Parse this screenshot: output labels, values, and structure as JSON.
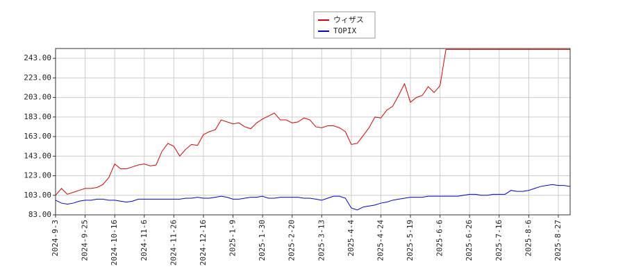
{
  "chart_data": {
    "type": "line",
    "categories": [
      "2024-9-3",
      null,
      null,
      null,
      null,
      "2024-9-25",
      null,
      null,
      null,
      null,
      "2024-10-16",
      null,
      null,
      null,
      null,
      "2024-11-6",
      null,
      null,
      null,
      null,
      "2024-11-26",
      null,
      null,
      null,
      null,
      "2024-12-16",
      null,
      null,
      null,
      null,
      "2025-1-9",
      null,
      null,
      null,
      null,
      "2025-1-30",
      null,
      null,
      null,
      null,
      "2025-2-20",
      null,
      null,
      null,
      null,
      "2025-3-13",
      null,
      null,
      null,
      null,
      "2025-4-4",
      null,
      null,
      null,
      null,
      "2025-4-24",
      null,
      null,
      null,
      null,
      "2025-5-19",
      null,
      null,
      null,
      null,
      "2025-6-6",
      null,
      null,
      null,
      null,
      "2025-6-26",
      null,
      null,
      null,
      null,
      "2025-7-16",
      null,
      null,
      null,
      null,
      "2025-8-6",
      null,
      null,
      null,
      null,
      "2025-8-27",
      null,
      null
    ],
    "series": [
      {
        "name": "ウィザス",
        "color": "#dd0000",
        "values": [
          103,
          110,
          104,
          106,
          108,
          110,
          110,
          111,
          114,
          121,
          135,
          130,
          130,
          132,
          134,
          135,
          133,
          134,
          148,
          156,
          153,
          143,
          150,
          155,
          154,
          165,
          168,
          170,
          180,
          178,
          176,
          177,
          173,
          171,
          177,
          181,
          184,
          187,
          180,
          180,
          177,
          178,
          182,
          180,
          173,
          172,
          174,
          174,
          172,
          168,
          155,
          156,
          164,
          172,
          183,
          182,
          190,
          194,
          205,
          217,
          198,
          203,
          205,
          214,
          208,
          215,
          252,
          252,
          252,
          252,
          252,
          252,
          252,
          252,
          252,
          252,
          252,
          252,
          252,
          252,
          252,
          252,
          252,
          252,
          252,
          252,
          252,
          252
        ]
      },
      {
        "name": "TOPIX",
        "color": "#0000dd",
        "values": [
          98,
          95,
          94,
          95,
          97,
          98,
          98,
          99,
          99,
          98,
          98,
          97,
          96,
          97,
          99,
          99,
          99,
          99,
          99,
          99,
          99,
          99,
          100,
          100,
          101,
          100,
          100,
          101,
          102,
          101,
          99,
          99,
          100,
          101,
          101,
          102,
          100,
          100,
          101,
          101,
          101,
          101,
          100,
          100,
          99,
          98,
          100,
          102,
          102,
          100,
          90,
          88,
          91,
          92,
          93,
          95,
          96,
          98,
          99,
          100,
          101,
          101,
          101,
          102,
          102,
          102,
          102,
          102,
          102,
          103,
          104,
          104,
          103,
          103,
          104,
          104,
          104,
          108,
          107,
          107,
          108,
          110,
          112,
          113,
          114,
          113,
          113,
          112
        ]
      }
    ],
    "ylim": [
      83,
      253
    ],
    "yticks": [
      {
        "value": 83,
        "label": "83.00"
      },
      {
        "value": 103,
        "label": "103.00"
      },
      {
        "value": 123,
        "label": "123.00"
      },
      {
        "value": 143,
        "label": "143.00"
      },
      {
        "value": 163,
        "label": "163.00"
      },
      {
        "value": 183,
        "label": "183.00"
      },
      {
        "value": 203,
        "label": "203.00"
      },
      {
        "value": 223,
        "label": "223.00"
      },
      {
        "value": 243,
        "label": "243.00"
      }
    ],
    "grid": true
  }
}
